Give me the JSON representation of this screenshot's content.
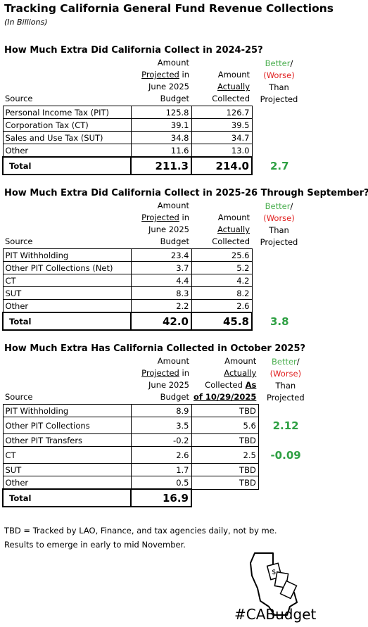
{
  "title": "Tracking California General Fund Revenue Collections",
  "subtitle": "(In Billions)",
  "tables": [
    {
      "heading": "How Much Extra Did California Collect in 2024-25?",
      "header": [
        [
          [
            "Source"
          ]
        ],
        [
          [
            "Amount"
          ],
          [
            {
              "text": "Projected",
              "underline": true
            },
            " in"
          ],
          [
            "June 2025"
          ],
          [
            "Budget"
          ]
        ],
        [
          [
            "Amount"
          ],
          [
            {
              "text": "Actually",
              "underline": true
            }
          ],
          [
            "Collected"
          ]
        ],
        [
          [
            {
              "text": "Better",
              "color": "green"
            },
            "/"
          ],
          [
            {
              "text": "(Worse)",
              "color": "red"
            }
          ],
          [
            "Than"
          ],
          [
            "Projected"
          ]
        ]
      ],
      "rows": [
        [
          "Personal Income Tax (PIT)",
          "125.8",
          "126.7",
          null
        ],
        [
          "Corporation Tax (CT)",
          "39.1",
          "39.5",
          null
        ],
        [
          "Sales and Use Tax (SUT)",
          "34.8",
          "34.7",
          null
        ],
        [
          "Other",
          "11.6",
          "13.0",
          null
        ]
      ],
      "total": [
        "Total",
        "211.3",
        "214.0",
        "2.7"
      ]
    },
    {
      "heading": "How Much Extra Did California Collect in 2025-26 Through September?",
      "header": [
        [
          [
            "Source"
          ]
        ],
        [
          [
            "Amount"
          ],
          [
            {
              "text": "Projected",
              "underline": true
            },
            " in"
          ],
          [
            "June 2025"
          ],
          [
            "Budget"
          ]
        ],
        [
          [
            "Amount"
          ],
          [
            {
              "text": "Actually",
              "underline": true
            }
          ],
          [
            "Collected"
          ]
        ],
        [
          [
            {
              "text": "Better",
              "color": "green"
            },
            "/"
          ],
          [
            {
              "text": "(Worse)",
              "color": "red"
            }
          ],
          [
            "Than"
          ],
          [
            "Projected"
          ]
        ]
      ],
      "rows": [
        [
          "PIT Withholding",
          "23.4",
          "25.6",
          null
        ],
        [
          "Other PIT Collections (Net)",
          "3.7",
          "5.2",
          null
        ],
        [
          "CT",
          "4.4",
          "4.2",
          null
        ],
        [
          "SUT",
          "8.3",
          "8.2",
          null
        ],
        [
          "Other",
          "2.2",
          "2.6",
          null
        ]
      ],
      "total": [
        "Total",
        "42.0",
        "45.8",
        "3.8"
      ]
    },
    {
      "heading": "How Much Extra Has California Collected in October 2025?",
      "header": [
        [
          [
            "Source"
          ]
        ],
        [
          [
            "Amount"
          ],
          [
            {
              "text": "Projected",
              "underline": true
            },
            " in"
          ],
          [
            "June 2025"
          ],
          [
            "Budget"
          ]
        ],
        [
          [
            "Amount"
          ],
          [
            {
              "text": "Actually",
              "underline": true
            }
          ],
          [
            "Collected ",
            {
              "text": "As",
              "underline": true,
              "bold": true
            }
          ],
          [
            {
              "text": "of 10/29/2025",
              "underline": true,
              "bold": true
            }
          ]
        ],
        [
          [
            {
              "text": "Better",
              "color": "green"
            },
            "/"
          ],
          [
            {
              "text": "(Worse)",
              "color": "red"
            }
          ],
          [
            "Than"
          ],
          [
            "Projected"
          ]
        ]
      ],
      "rows": [
        [
          "PIT Withholding",
          "8.9",
          "TBD",
          null
        ],
        [
          "Other PIT Collections",
          "3.5",
          "5.6",
          "2.12"
        ],
        [
          "Other PIT Transfers",
          "-0.2",
          "TBD",
          null
        ],
        [
          "CT",
          "2.6",
          "2.5",
          "-0.09"
        ],
        [
          "SUT",
          "1.7",
          "TBD",
          null
        ],
        [
          "Other",
          "0.5",
          "TBD",
          null
        ]
      ],
      "total": [
        "Total",
        "16.9",
        null,
        null
      ]
    }
  ],
  "footnotes": [
    "TBD = Tracked by LAO, Finance, and tax agencies daily, not by me.",
    "Results to emerge in early to mid November."
  ],
  "logo": "#CABudget"
}
